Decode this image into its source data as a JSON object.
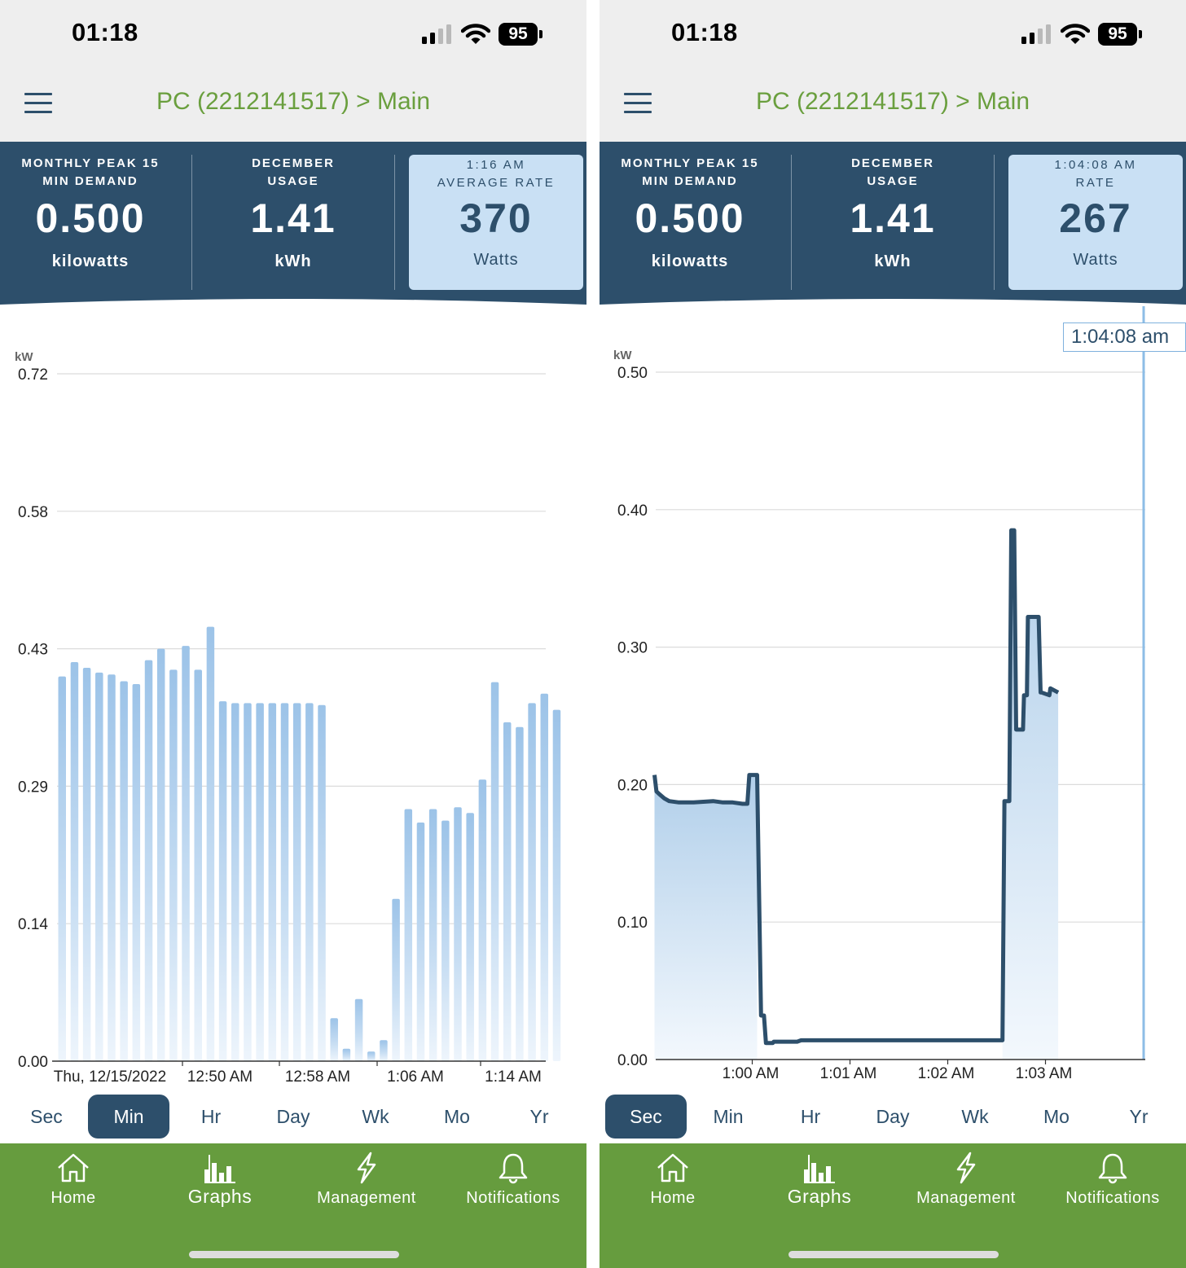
{
  "screens": [
    {
      "status": {
        "time": "01:18",
        "battery": "95"
      },
      "header": {
        "title": "PC (2212141517) > Main"
      },
      "stats": [
        {
          "label_line1": "MONTHLY PEAK 15",
          "label_line2": "MIN DEMAND",
          "value": "0.500",
          "unit": "kilowatts"
        },
        {
          "label_line1": "DECEMBER",
          "label_line2": "USAGE",
          "value": "1.41",
          "unit": "kWh"
        },
        {
          "label_line1": "1:16 AM",
          "label_line2": "AVERAGE RATE",
          "value": "370",
          "unit": "Watts"
        }
      ],
      "periods": [
        "Sec",
        "Min",
        "Hr",
        "Day",
        "Wk",
        "Mo",
        "Yr"
      ],
      "active_period": "Min",
      "nav": [
        "Home",
        "Graphs",
        "Management",
        "Notifications"
      ],
      "active_nav": "Graphs",
      "chart_data": {
        "type": "bar",
        "ylabel": "kW",
        "ylim": [
          0,
          0.72
        ],
        "yticks": [
          "0.00",
          "0.14",
          "0.29",
          "0.43",
          "0.58",
          "0.72"
        ],
        "xticks": [
          "Thu, 12/15/2022",
          "12:50 AM",
          "12:58 AM",
          "1:06 AM",
          "1:14 AM"
        ],
        "grid": true,
        "values": [
          0.403,
          0.418,
          0.412,
          0.407,
          0.405,
          0.398,
          0.395,
          0.42,
          0.432,
          0.41,
          0.435,
          0.41,
          0.455,
          0.377,
          0.375,
          0.375,
          0.375,
          0.375,
          0.375,
          0.375,
          0.375,
          0.373,
          0.045,
          0.013,
          0.065,
          0.01,
          0.022,
          0.17,
          0.264,
          0.25,
          0.264,
          0.252,
          0.266,
          0.26,
          0.295,
          0.397,
          0.355,
          0.35,
          0.375,
          0.385,
          0.368
        ]
      }
    },
    {
      "status": {
        "time": "01:18",
        "battery": "95"
      },
      "header": {
        "title": "PC (2212141517) > Main"
      },
      "stats": [
        {
          "label_line1": "MONTHLY PEAK 15",
          "label_line2": "MIN DEMAND",
          "value": "0.500",
          "unit": "kilowatts"
        },
        {
          "label_line1": "DECEMBER",
          "label_line2": "USAGE",
          "value": "1.41",
          "unit": "kWh"
        },
        {
          "label_line1": "1:04:08 AM",
          "label_line2": "RATE",
          "value": "267",
          "unit": "Watts"
        }
      ],
      "periods": [
        "Sec",
        "Min",
        "Hr",
        "Day",
        "Wk",
        "Mo",
        "Yr"
      ],
      "active_period": "Sec",
      "nav": [
        "Home",
        "Graphs",
        "Management",
        "Notifications"
      ],
      "active_nav": "Graphs",
      "tooltip": "1:04:08 am",
      "chart_data": {
        "type": "area",
        "ylabel": "kW",
        "ylim": [
          0,
          0.5
        ],
        "yticks": [
          "0.00",
          "0.10",
          "0.20",
          "0.30",
          "0.40",
          "0.50"
        ],
        "xticks": [
          "1:00 AM",
          "1:01 AM",
          "1:02 AM",
          "1:03 AM"
        ],
        "grid": true,
        "x_minutes_after_1am": [
          -1.0,
          -0.98,
          -0.95,
          -0.9,
          -0.85,
          -0.75,
          -0.6,
          -0.4,
          -0.3,
          -0.2,
          -0.1,
          -0.05,
          -0.03,
          -0.02,
          0.05,
          0.09,
          0.1,
          0.12,
          0.14,
          0.21,
          0.22,
          0.46,
          0.5,
          2.56,
          2.58,
          2.63,
          2.65,
          2.68,
          2.7,
          2.77,
          2.78,
          2.81,
          2.82,
          2.93,
          2.95,
          2.96,
          3.04,
          3.05,
          3.13
        ],
        "y_kw": [
          0.207,
          0.195,
          0.193,
          0.19,
          0.188,
          0.187,
          0.187,
          0.188,
          0.187,
          0.187,
          0.186,
          0.186,
          0.207,
          0.207,
          0.207,
          0.032,
          0.032,
          0.032,
          0.012,
          0.012,
          0.013,
          0.013,
          0.014,
          0.014,
          0.188,
          0.188,
          0.385,
          0.385,
          0.24,
          0.24,
          0.265,
          0.265,
          0.322,
          0.322,
          0.267,
          0.267,
          0.265,
          0.27,
          0.267
        ]
      }
    }
  ]
}
